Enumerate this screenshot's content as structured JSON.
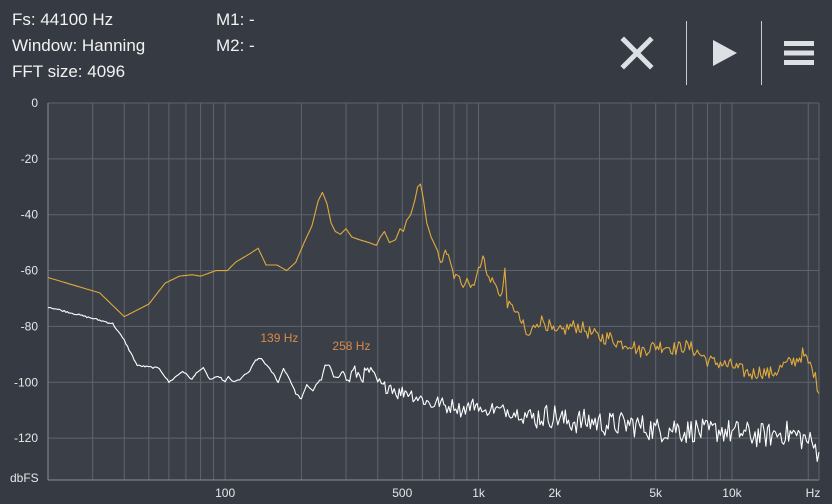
{
  "info": {
    "fs": "Fs: 44100 Hz",
    "window": "Window: Hanning",
    "fft": "FFT size: 4096",
    "m1": "M1: -",
    "m2": "M2: -"
  },
  "toolbar": {
    "close_icon": "close-icon",
    "play_icon": "play-icon",
    "menu_icon": "menu-icon"
  },
  "chart_data": {
    "type": "line",
    "xscale": "log",
    "xlim": [
      20,
      22050
    ],
    "ylim": [
      -135,
      0
    ],
    "ylabel": "dbFS",
    "xlabel": "Hz",
    "y_ticks": [
      0,
      -20,
      -40,
      -60,
      -80,
      -100,
      -120
    ],
    "x_tick_labels": [
      {
        "value": 100,
        "label": "100"
      },
      {
        "value": 500,
        "label": "500"
      },
      {
        "value": 1000,
        "label": "1k"
      },
      {
        "value": 2000,
        "label": "2k"
      },
      {
        "value": 5000,
        "label": "5k"
      },
      {
        "value": 10000,
        "label": "10k"
      }
    ],
    "grid": true,
    "colors": {
      "series1": "#e0a93c",
      "series2": "#ffffff",
      "grid": "#5f646c",
      "marker": "#d98a4a"
    },
    "markers": [
      {
        "freq": 139,
        "label": "139 Hz"
      },
      {
        "freq": 258,
        "label": "258 Hz"
      }
    ],
    "series": [
      {
        "color": "#e0a93c",
        "points": [
          [
            20,
            -62.5
          ],
          [
            32,
            -68
          ],
          [
            40,
            -76.5
          ],
          [
            50,
            -72
          ],
          [
            58,
            -64.5
          ],
          [
            66,
            -62
          ],
          [
            74,
            -61.5
          ],
          [
            80,
            -62
          ],
          [
            86,
            -61
          ],
          [
            92,
            -60
          ],
          [
            97,
            -60
          ],
          [
            102,
            -60
          ],
          [
            110,
            -57
          ],
          [
            125,
            -54
          ],
          [
            135,
            -52
          ],
          [
            145,
            -58
          ],
          [
            160,
            -58
          ],
          [
            175,
            -60
          ],
          [
            190,
            -57
          ],
          [
            205,
            -50
          ],
          [
            220,
            -44
          ],
          [
            233,
            -35
          ],
          [
            242,
            -32
          ],
          [
            252,
            -36
          ],
          [
            262,
            -43
          ],
          [
            272,
            -46
          ],
          [
            285,
            -47
          ],
          [
            300,
            -45
          ],
          [
            316,
            -48
          ],
          [
            340,
            -49
          ],
          [
            370,
            -50
          ],
          [
            395,
            -51
          ],
          [
            410,
            -48
          ],
          [
            425,
            -46
          ],
          [
            445,
            -50
          ],
          [
            470,
            -49
          ],
          [
            490,
            -45
          ],
          [
            505,
            -46
          ],
          [
            520,
            -42
          ],
          [
            540,
            -40
          ],
          [
            560,
            -35
          ],
          [
            575,
            -30
          ],
          [
            590,
            -29
          ],
          [
            605,
            -34
          ],
          [
            625,
            -43
          ],
          [
            650,
            -48
          ],
          [
            690,
            -53
          ],
          [
            720,
            -58
          ],
          [
            740,
            -52
          ],
          [
            770,
            -57
          ],
          [
            800,
            -62
          ],
          [
            840,
            -63
          ],
          [
            870,
            -65
          ],
          [
            900,
            -62
          ],
          [
            930,
            -66
          ],
          [
            960,
            -64
          ],
          [
            1000,
            -60
          ],
          [
            1040,
            -54
          ],
          [
            1080,
            -62
          ],
          [
            1150,
            -64
          ],
          [
            1200,
            -68
          ],
          [
            1240,
            -68
          ],
          [
            1270,
            -60
          ],
          [
            1300,
            -72
          ],
          [
            1400,
            -74
          ],
          [
            1500,
            -80
          ],
          [
            1560,
            -84
          ],
          [
            1620,
            -82
          ],
          [
            1700,
            -78
          ],
          [
            1800,
            -78
          ],
          [
            1900,
            -80
          ],
          [
            2000,
            -83
          ],
          [
            2100,
            -82
          ],
          [
            2300,
            -80
          ],
          [
            2500,
            -80
          ],
          [
            2700,
            -82
          ],
          [
            3000,
            -84
          ],
          [
            3300,
            -84
          ],
          [
            3600,
            -86
          ],
          [
            4000,
            -86
          ],
          [
            4300,
            -89
          ],
          [
            4600,
            -88
          ],
          [
            5000,
            -87
          ],
          [
            5500,
            -87
          ],
          [
            6000,
            -88
          ],
          [
            6500,
            -87
          ],
          [
            7000,
            -88
          ],
          [
            7500,
            -90
          ],
          [
            8000,
            -92
          ],
          [
            8500,
            -93
          ],
          [
            9000,
            -93
          ],
          [
            9500,
            -94
          ],
          [
            10000,
            -94
          ],
          [
            11000,
            -96
          ],
          [
            12000,
            -97
          ],
          [
            13000,
            -96
          ],
          [
            14000,
            -97
          ],
          [
            15000,
            -96
          ],
          [
            16000,
            -94
          ],
          [
            17000,
            -93
          ],
          [
            18000,
            -92
          ],
          [
            19000,
            -90
          ],
          [
            20000,
            -93
          ],
          [
            21000,
            -96
          ],
          [
            22050,
            -104
          ]
        ]
      },
      {
        "color": "#ffffff",
        "points": [
          [
            20,
            -73
          ],
          [
            36,
            -79
          ],
          [
            40,
            -85
          ],
          [
            45,
            -94
          ],
          [
            55,
            -95
          ],
          [
            60,
            -100
          ],
          [
            68,
            -96
          ],
          [
            74,
            -99
          ],
          [
            78,
            -96
          ],
          [
            82,
            -95
          ],
          [
            87,
            -99
          ],
          [
            95,
            -98
          ],
          [
            100,
            -100
          ],
          [
            103,
            -98
          ],
          [
            108,
            -100
          ],
          [
            114,
            -99
          ],
          [
            125,
            -96
          ],
          [
            132,
            -92
          ],
          [
            139,
            -91.5
          ],
          [
            146,
            -94
          ],
          [
            155,
            -97
          ],
          [
            162,
            -100
          ],
          [
            170,
            -95
          ],
          [
            180,
            -99
          ],
          [
            190,
            -104
          ],
          [
            200,
            -106
          ],
          [
            210,
            -101
          ],
          [
            222,
            -103
          ],
          [
            232,
            -100
          ],
          [
            240,
            -99
          ],
          [
            248,
            -94
          ],
          [
            258,
            -94
          ],
          [
            268,
            -98
          ],
          [
            280,
            -98
          ],
          [
            292,
            -96
          ],
          [
            305,
            -100
          ],
          [
            320,
            -96
          ],
          [
            345,
            -98
          ],
          [
            370,
            -96
          ],
          [
            400,
            -100
          ],
          [
            420,
            -102
          ],
          [
            450,
            -101
          ],
          [
            480,
            -104
          ],
          [
            520,
            -103
          ],
          [
            560,
            -105
          ],
          [
            600,
            -106
          ],
          [
            650,
            -108
          ],
          [
            700,
            -107
          ],
          [
            750,
            -109
          ],
          [
            800,
            -108
          ],
          [
            850,
            -110
          ],
          [
            900,
            -109
          ],
          [
            950,
            -108
          ],
          [
            1000,
            -108
          ],
          [
            1050,
            -112
          ],
          [
            1100,
            -109
          ],
          [
            1200,
            -110
          ],
          [
            1300,
            -110
          ],
          [
            1400,
            -111
          ],
          [
            1500,
            -111
          ],
          [
            1600,
            -113
          ],
          [
            1800,
            -112
          ],
          [
            2000,
            -112
          ],
          [
            2200,
            -114
          ],
          [
            2500,
            -114
          ],
          [
            2800,
            -114
          ],
          [
            3200,
            -115
          ],
          [
            3600,
            -115
          ],
          [
            4000,
            -115
          ],
          [
            4500,
            -116
          ],
          [
            5000,
            -117
          ],
          [
            5500,
            -117
          ],
          [
            6000,
            -116
          ],
          [
            6500,
            -118
          ],
          [
            7000,
            -117
          ],
          [
            8000,
            -118
          ],
          [
            9000,
            -117
          ],
          [
            10000,
            -118
          ],
          [
            11000,
            -118
          ],
          [
            12000,
            -119
          ],
          [
            14000,
            -119
          ],
          [
            16000,
            -118
          ],
          [
            18000,
            -119
          ],
          [
            20000,
            -121
          ],
          [
            21000,
            -123
          ],
          [
            22050,
            -125
          ]
        ]
      }
    ]
  }
}
